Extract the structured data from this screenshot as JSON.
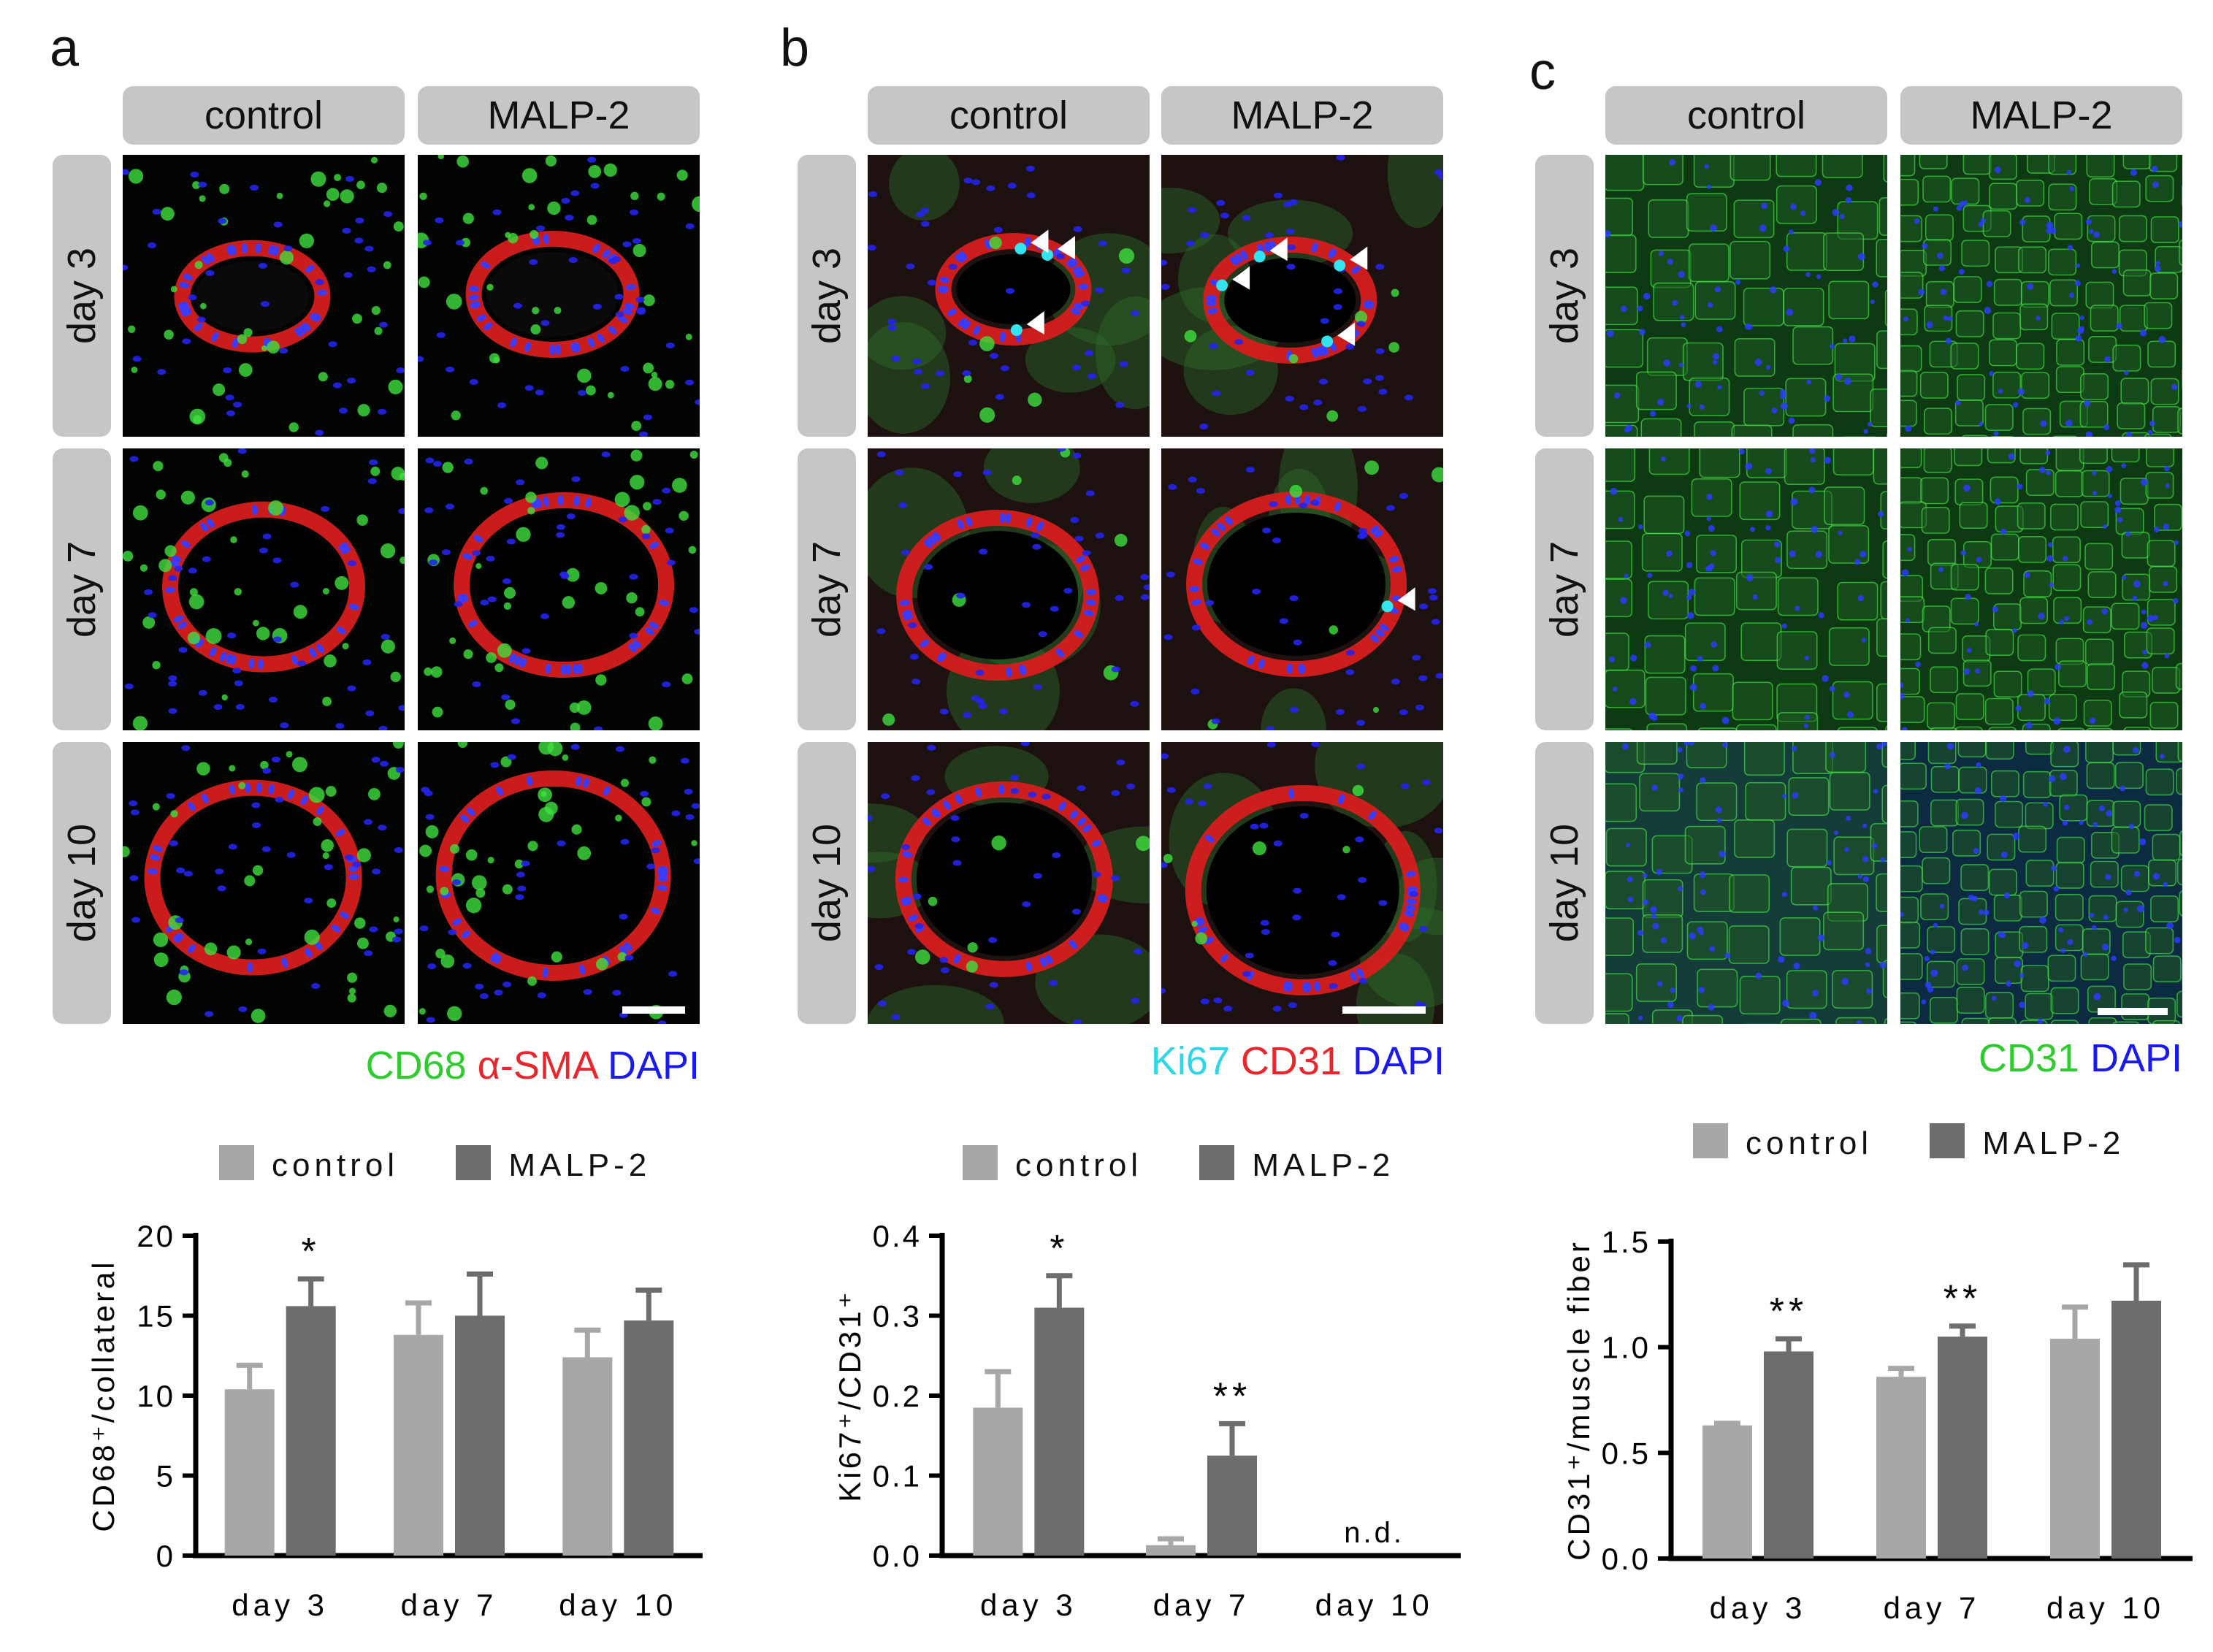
{
  "colors": {
    "control": "#a7a7a9",
    "malp2": "#6d6d6f",
    "green": "#2ecc2e",
    "red": "#e8262b",
    "blue": "#1a1aee",
    "cyan": "#2fd6e6",
    "header_bg": "#c6c6c6"
  },
  "panels": [
    {
      "label": "a",
      "columns": [
        "control",
        "MALP-2"
      ],
      "rows": [
        "day 3",
        "day 7",
        "day 10"
      ],
      "stain": [
        {
          "text": "CD68",
          "color": "green"
        },
        {
          "text": " α-SMA",
          "color": "red"
        },
        {
          "text": " DAPI",
          "color": "blue"
        }
      ],
      "image_style": "vessel-macrophage",
      "legend": {
        "control": "control",
        "malp2": "MALP-2"
      }
    },
    {
      "label": "b",
      "columns": [
        "control",
        "MALP-2"
      ],
      "rows": [
        "day 3",
        "day 7",
        "day 10"
      ],
      "stain": [
        {
          "text": "Ki67",
          "color": "cyan"
        },
        {
          "text": " CD31",
          "color": "red"
        },
        {
          "text": " DAPI",
          "color": "blue"
        }
      ],
      "image_style": "vessel-proliferation",
      "legend": {
        "control": "control",
        "malp2": "MALP-2"
      }
    },
    {
      "label": "c",
      "columns": [
        "control",
        "MALP-2"
      ],
      "rows": [
        "day 3",
        "day 7",
        "day 10"
      ],
      "stain": [
        {
          "text": "CD31",
          "color": "green"
        },
        {
          "text": " DAPI",
          "color": "blue"
        }
      ],
      "image_style": "muscle-capillary",
      "legend": {
        "control": "control",
        "malp2": "MALP-2"
      }
    }
  ],
  "chart_data": [
    {
      "type": "bar",
      "panel": "a",
      "categories": [
        "day 3",
        "day 7",
        "day 10"
      ],
      "series": [
        {
          "name": "control",
          "values": [
            10.4,
            13.8,
            12.4
          ],
          "errors": [
            1.5,
            2.0,
            1.7
          ]
        },
        {
          "name": "MALP-2",
          "values": [
            15.6,
            15.0,
            14.7
          ],
          "errors": [
            1.7,
            2.6,
            1.9
          ]
        }
      ],
      "ylabel": "CD68⁺/collateral",
      "ylim": [
        0,
        20
      ],
      "yticks": [
        "0",
        "5",
        "10",
        "15",
        "20"
      ],
      "significance": [
        "*",
        "",
        ""
      ],
      "annotations": []
    },
    {
      "type": "bar",
      "panel": "b",
      "categories": [
        "day 3",
        "day 7",
        "day 10"
      ],
      "series": [
        {
          "name": "control",
          "values": [
            0.185,
            0.013,
            null
          ],
          "errors": [
            0.045,
            0.008,
            null
          ]
        },
        {
          "name": "MALP-2",
          "values": [
            0.31,
            0.125,
            null
          ],
          "errors": [
            0.04,
            0.04,
            null
          ]
        }
      ],
      "ylabel": "Ki67⁺/CD31⁺",
      "ylim": [
        0,
        0.4
      ],
      "yticks": [
        "0.0",
        "0.1",
        "0.2",
        "0.3",
        "0.4"
      ],
      "significance": [
        "*",
        "**",
        ""
      ],
      "annotations": [
        "",
        "",
        "n.d."
      ]
    },
    {
      "type": "bar",
      "panel": "c",
      "categories": [
        "day 3",
        "day 7",
        "day 10"
      ],
      "series": [
        {
          "name": "control",
          "values": [
            0.63,
            0.86,
            1.04
          ],
          "errors": [
            0.01,
            0.04,
            0.15
          ]
        },
        {
          "name": "MALP-2",
          "values": [
            0.98,
            1.05,
            1.22
          ],
          "errors": [
            0.06,
            0.05,
            0.17
          ]
        }
      ],
      "ylabel": "CD31⁺/muscle fiber",
      "ylim": [
        0,
        1.5
      ],
      "yticks": [
        "0.0",
        "0.5",
        "1.0",
        "1.5"
      ],
      "significance": [
        "**",
        "**",
        ""
      ],
      "annotations": []
    }
  ]
}
